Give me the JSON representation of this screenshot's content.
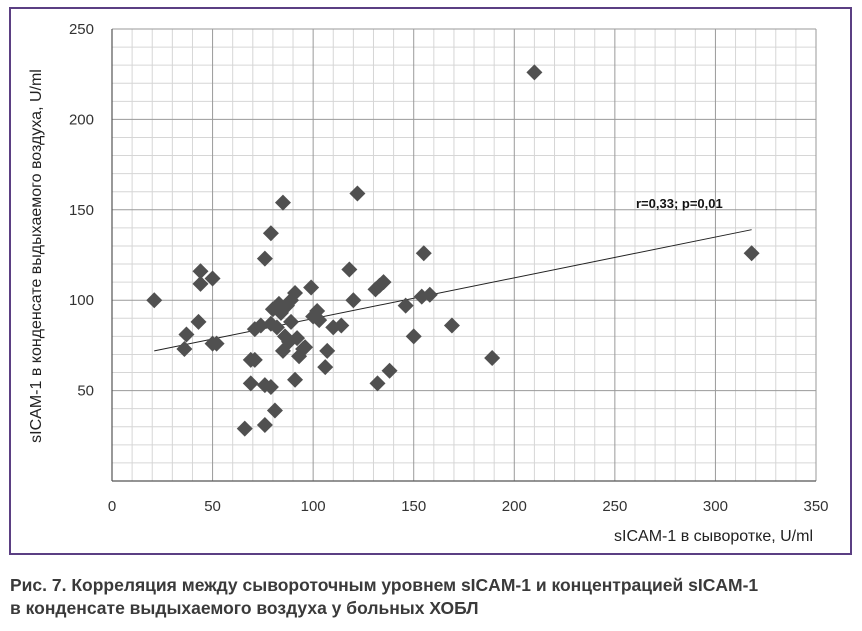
{
  "chart_data": {
    "type": "scatter",
    "xlabel": "sICAM-1 в сыворотке, U/ml",
    "ylabel": "sICAM-1 в конденсате выдыхаемого воздуха, U/ml",
    "xlim": [
      0,
      350
    ],
    "ylim": [
      0,
      250
    ],
    "x_ticks": [
      0,
      50,
      100,
      150,
      200,
      250,
      300,
      350
    ],
    "y_ticks": [
      50,
      100,
      150,
      200,
      250
    ],
    "grid": true,
    "marker": "diamond",
    "marker_color": "#505050",
    "trendline": {
      "type": "linear",
      "x": [
        21,
        318
      ],
      "y": [
        72,
        139
      ],
      "color": "#222222"
    },
    "annotation": "r=0,33; p=0,01",
    "points": [
      {
        "x": 21,
        "y": 100
      },
      {
        "x": 36,
        "y": 73
      },
      {
        "x": 37,
        "y": 81
      },
      {
        "x": 43,
        "y": 88
      },
      {
        "x": 44,
        "y": 116
      },
      {
        "x": 44,
        "y": 109
      },
      {
        "x": 50,
        "y": 112
      },
      {
        "x": 50,
        "y": 76
      },
      {
        "x": 52,
        "y": 76
      },
      {
        "x": 66,
        "y": 29
      },
      {
        "x": 69,
        "y": 54
      },
      {
        "x": 69,
        "y": 67
      },
      {
        "x": 71,
        "y": 67
      },
      {
        "x": 71,
        "y": 84
      },
      {
        "x": 74,
        "y": 86
      },
      {
        "x": 76,
        "y": 123
      },
      {
        "x": 76,
        "y": 31
      },
      {
        "x": 76,
        "y": 53
      },
      {
        "x": 79,
        "y": 137
      },
      {
        "x": 79,
        "y": 87
      },
      {
        "x": 79,
        "y": 52
      },
      {
        "x": 80,
        "y": 95
      },
      {
        "x": 81,
        "y": 39
      },
      {
        "x": 82,
        "y": 85
      },
      {
        "x": 83,
        "y": 98
      },
      {
        "x": 84,
        "y": 93
      },
      {
        "x": 85,
        "y": 154
      },
      {
        "x": 85,
        "y": 72
      },
      {
        "x": 86,
        "y": 80
      },
      {
        "x": 87,
        "y": 97
      },
      {
        "x": 88,
        "y": 77
      },
      {
        "x": 89,
        "y": 100
      },
      {
        "x": 89,
        "y": 88
      },
      {
        "x": 91,
        "y": 104
      },
      {
        "x": 91,
        "y": 56
      },
      {
        "x": 92,
        "y": 79
      },
      {
        "x": 93,
        "y": 69
      },
      {
        "x": 95,
        "y": 73
      },
      {
        "x": 96,
        "y": 74
      },
      {
        "x": 99,
        "y": 107
      },
      {
        "x": 100,
        "y": 91
      },
      {
        "x": 102,
        "y": 94
      },
      {
        "x": 103,
        "y": 89
      },
      {
        "x": 106,
        "y": 63
      },
      {
        "x": 107,
        "y": 72
      },
      {
        "x": 110,
        "y": 85
      },
      {
        "x": 114,
        "y": 86
      },
      {
        "x": 118,
        "y": 117
      },
      {
        "x": 120,
        "y": 100
      },
      {
        "x": 122,
        "y": 159
      },
      {
        "x": 131,
        "y": 106
      },
      {
        "x": 132,
        "y": 54
      },
      {
        "x": 133,
        "y": 108
      },
      {
        "x": 135,
        "y": 110
      },
      {
        "x": 138,
        "y": 61
      },
      {
        "x": 146,
        "y": 97
      },
      {
        "x": 150,
        "y": 80
      },
      {
        "x": 154,
        "y": 102
      },
      {
        "x": 155,
        "y": 126
      },
      {
        "x": 158,
        "y": 103
      },
      {
        "x": 169,
        "y": 86
      },
      {
        "x": 189,
        "y": 68
      },
      {
        "x": 210,
        "y": 226
      },
      {
        "x": 318,
        "y": 126
      }
    ]
  },
  "caption": {
    "line1": "Рис. 7. Корреляция между сывороточным уровнем sICAM-1 и концентрацией sICAM-1",
    "line2": "в конденсате выдыхаемого воздуха у больных ХОБЛ"
  }
}
